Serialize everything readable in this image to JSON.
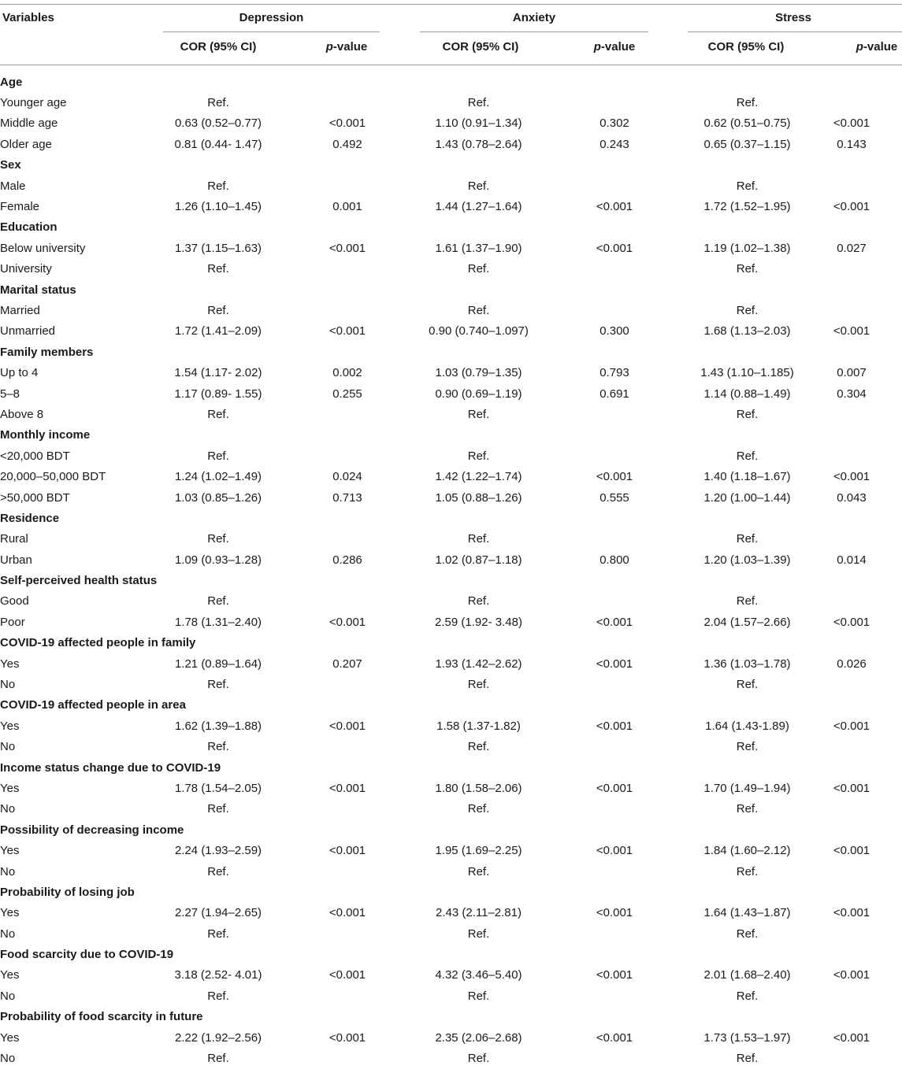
{
  "header": {
    "variables": "Variables",
    "groups": [
      "Depression",
      "Anxiety",
      "Stress"
    ],
    "cor": "COR (95% CI)",
    "p_italic": "p",
    "p_rest": "-value"
  },
  "rows": [
    {
      "type": "section",
      "label": "Age"
    },
    {
      "type": "row",
      "label": "Younger age",
      "dep_cor": "Ref.",
      "dep_p": "",
      "anx_cor": "Ref.",
      "anx_p": "",
      "str_cor": "Ref.",
      "str_p": ""
    },
    {
      "type": "row",
      "label": "Middle age",
      "dep_cor": "0.63 (0.52–0.77)",
      "dep_p": "<0.001",
      "anx_cor": "1.10 (0.91–1.34)",
      "anx_p": "0.302",
      "str_cor": "0.62 (0.51–0.75)",
      "str_p": "<0.001"
    },
    {
      "type": "row",
      "label": "Older age",
      "dep_cor": "0.81 (0.44- 1.47)",
      "dep_p": "0.492",
      "anx_cor": "1.43 (0.78–2.64)",
      "anx_p": "0.243",
      "str_cor": "0.65 (0.37–1.15)",
      "str_p": "0.143"
    },
    {
      "type": "section",
      "label": "Sex"
    },
    {
      "type": "row",
      "label": "Male",
      "dep_cor": "Ref.",
      "dep_p": "",
      "anx_cor": "Ref.",
      "anx_p": "",
      "str_cor": "Ref.",
      "str_p": ""
    },
    {
      "type": "row",
      "label": "Female",
      "dep_cor": "1.26 (1.10–1.45)",
      "dep_p": "0.001",
      "anx_cor": "1.44 (1.27–1.64)",
      "anx_p": "<0.001",
      "str_cor": "1.72 (1.52–1.95)",
      "str_p": "<0.001"
    },
    {
      "type": "section",
      "label": "Education"
    },
    {
      "type": "row",
      "label": "Below university",
      "dep_cor": "1.37 (1.15–1.63)",
      "dep_p": "<0.001",
      "anx_cor": "1.61 (1.37–1.90)",
      "anx_p": "<0.001",
      "str_cor": "1.19 (1.02–1.38)",
      "str_p": "0.027"
    },
    {
      "type": "row",
      "label": "University",
      "dep_cor": "Ref.",
      "dep_p": "",
      "anx_cor": "Ref.",
      "anx_p": "",
      "str_cor": "Ref.",
      "str_p": ""
    },
    {
      "type": "section",
      "label": "Marital status"
    },
    {
      "type": "row",
      "label": "Married",
      "dep_cor": "Ref.",
      "dep_p": "",
      "anx_cor": "Ref.",
      "anx_p": "",
      "str_cor": "Ref.",
      "str_p": ""
    },
    {
      "type": "row",
      "label": "Unmarried",
      "dep_cor": "1.72 (1.41–2.09)",
      "dep_p": "<0.001",
      "anx_cor": "0.90 (0.740–1.097)",
      "anx_p": "0.300",
      "str_cor": "1.68 (1.13–2.03)",
      "str_p": "<0.001"
    },
    {
      "type": "section",
      "label": "Family members"
    },
    {
      "type": "row",
      "label": "Up to 4",
      "dep_cor": "1.54 (1.17- 2.02)",
      "dep_p": "0.002",
      "anx_cor": "1.03 (0.79–1.35)",
      "anx_p": "0.793",
      "str_cor": "1.43 (1.10–1.185)",
      "str_p": "0.007"
    },
    {
      "type": "row",
      "label": "5–8",
      "dep_cor": "1.17 (0.89- 1.55)",
      "dep_p": "0.255",
      "anx_cor": "0.90 (0.69–1.19)",
      "anx_p": "0.691",
      "str_cor": "1.14 (0.88–1.49)",
      "str_p": "0.304"
    },
    {
      "type": "row",
      "label": "Above 8",
      "dep_cor": "Ref.",
      "dep_p": "",
      "anx_cor": "Ref.",
      "anx_p": "",
      "str_cor": "Ref.",
      "str_p": ""
    },
    {
      "type": "section",
      "label": "Monthly income"
    },
    {
      "type": "row",
      "label": "<20,000 BDT",
      "dep_cor": "Ref.",
      "dep_p": "",
      "anx_cor": "Ref.",
      "anx_p": "",
      "str_cor": "Ref.",
      "str_p": ""
    },
    {
      "type": "row",
      "label": "20,000–50,000 BDT",
      "dep_cor": "1.24 (1.02–1.49)",
      "dep_p": "0.024",
      "anx_cor": "1.42 (1.22–1.74)",
      "anx_p": "<0.001",
      "str_cor": "1.40 (1.18–1.67)",
      "str_p": "<0.001"
    },
    {
      "type": "row",
      "label": ">50,000 BDT",
      "dep_cor": "1.03 (0.85–1.26)",
      "dep_p": "0.713",
      "anx_cor": "1.05 (0.88–1.26)",
      "anx_p": "0.555",
      "str_cor": "1.20 (1.00–1.44)",
      "str_p": "0.043"
    },
    {
      "type": "section",
      "label": "Residence"
    },
    {
      "type": "row",
      "label": "Rural",
      "dep_cor": "Ref.",
      "dep_p": "",
      "anx_cor": "Ref.",
      "anx_p": "",
      "str_cor": "Ref.",
      "str_p": ""
    },
    {
      "type": "row",
      "label": "Urban",
      "dep_cor": "1.09 (0.93–1.28)",
      "dep_p": "0.286",
      "anx_cor": "1.02 (0.87–1.18)",
      "anx_p": "0.800",
      "str_cor": "1.20 (1.03–1.39)",
      "str_p": "0.014"
    },
    {
      "type": "section",
      "label": "Self-perceived health status"
    },
    {
      "type": "row",
      "label": "Good",
      "dep_cor": "Ref.",
      "dep_p": "",
      "anx_cor": "Ref.",
      "anx_p": "",
      "str_cor": "Ref.",
      "str_p": ""
    },
    {
      "type": "row",
      "label": "Poor",
      "dep_cor": "1.78 (1.31–2.40)",
      "dep_p": "<0.001",
      "anx_cor": "2.59 (1.92- 3.48)",
      "anx_p": "<0.001",
      "str_cor": "2.04 (1.57–2.66)",
      "str_p": "<0.001"
    },
    {
      "type": "section",
      "label": "COVID-19 affected people in family"
    },
    {
      "type": "row",
      "label": "Yes",
      "dep_cor": "1.21 (0.89–1.64)",
      "dep_p": "0.207",
      "anx_cor": "1.93 (1.42–2.62)",
      "anx_p": "<0.001",
      "str_cor": "1.36 (1.03–1.78)",
      "str_p": "0.026"
    },
    {
      "type": "row",
      "label": "No",
      "dep_cor": "Ref.",
      "dep_p": "",
      "anx_cor": "Ref.",
      "anx_p": "",
      "str_cor": "Ref.",
      "str_p": ""
    },
    {
      "type": "section",
      "label": "COVID-19 affected people in area"
    },
    {
      "type": "row",
      "label": "Yes",
      "dep_cor": "1.62 (1.39–1.88)",
      "dep_p": "<0.001",
      "anx_cor": "1.58 (1.37-1.82)",
      "anx_p": "<0.001",
      "str_cor": "1.64 (1.43-1.89)",
      "str_p": "<0.001"
    },
    {
      "type": "row",
      "label": "No",
      "dep_cor": "Ref.",
      "dep_p": "",
      "anx_cor": "Ref.",
      "anx_p": "",
      "str_cor": "Ref.",
      "str_p": ""
    },
    {
      "type": "section",
      "label": "Income status change due to COVID-19"
    },
    {
      "type": "row",
      "label": "Yes",
      "dep_cor": "1.78 (1.54–2.05)",
      "dep_p": "<0.001",
      "anx_cor": "1.80 (1.58–2.06)",
      "anx_p": "<0.001",
      "str_cor": "1.70 (1.49–1.94)",
      "str_p": "<0.001"
    },
    {
      "type": "row",
      "label": "No",
      "dep_cor": "Ref.",
      "dep_p": "",
      "anx_cor": "Ref.",
      "anx_p": "",
      "str_cor": "Ref.",
      "str_p": ""
    },
    {
      "type": "section",
      "label": "Possibility of decreasing income"
    },
    {
      "type": "row",
      "label": "Yes",
      "dep_cor": "2.24 (1.93–2.59)",
      "dep_p": "<0.001",
      "anx_cor": "1.95 (1.69–2.25)",
      "anx_p": "<0.001",
      "str_cor": "1.84 (1.60–2.12)",
      "str_p": "<0.001"
    },
    {
      "type": "row",
      "label": "No",
      "dep_cor": "Ref.",
      "dep_p": "",
      "anx_cor": "Ref.",
      "anx_p": "",
      "str_cor": "Ref.",
      "str_p": ""
    },
    {
      "type": "section",
      "label": "Probability of losing job"
    },
    {
      "type": "row",
      "label": "Yes",
      "dep_cor": "2.27 (1.94–2.65)",
      "dep_p": "<0.001",
      "anx_cor": "2.43 (2.11–2.81)",
      "anx_p": "<0.001",
      "str_cor": "1.64 (1.43–1.87)",
      "str_p": "<0.001"
    },
    {
      "type": "row",
      "label": "No",
      "dep_cor": "Ref.",
      "dep_p": "",
      "anx_cor": "Ref.",
      "anx_p": "",
      "str_cor": "Ref.",
      "str_p": ""
    },
    {
      "type": "section",
      "label": "Food scarcity due to COVID-19"
    },
    {
      "type": "row",
      "label": "Yes",
      "dep_cor": "3.18 (2.52- 4.01)",
      "dep_p": "<0.001",
      "anx_cor": "4.32 (3.46–5.40)",
      "anx_p": "<0.001",
      "str_cor": "2.01 (1.68–2.40)",
      "str_p": "<0.001"
    },
    {
      "type": "row",
      "label": "No",
      "dep_cor": "Ref.",
      "dep_p": "",
      "anx_cor": "Ref.",
      "anx_p": "",
      "str_cor": "Ref.",
      "str_p": ""
    },
    {
      "type": "section",
      "label": "Probability of food scarcity in future"
    },
    {
      "type": "row",
      "label": "Yes",
      "dep_cor": "2.22 (1.92–2.56)",
      "dep_p": "<0.001",
      "anx_cor": "2.35 (2.06–2.68)",
      "anx_p": "<0.001",
      "str_cor": "1.73 (1.53–1.97)",
      "str_p": "<0.001"
    },
    {
      "type": "row",
      "label": "No",
      "dep_cor": "Ref.",
      "dep_p": "",
      "anx_cor": "Ref.",
      "anx_p": "",
      "str_cor": "Ref.",
      "str_p": ""
    }
  ]
}
